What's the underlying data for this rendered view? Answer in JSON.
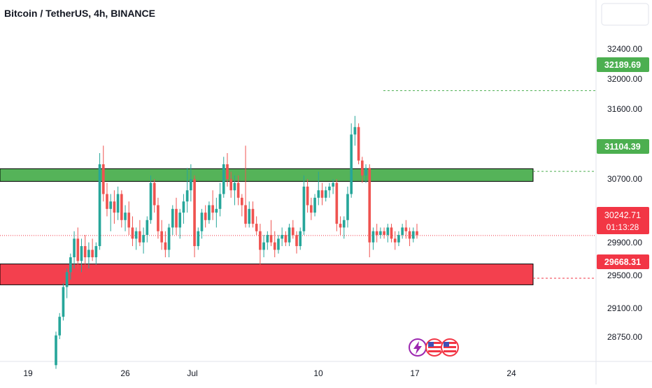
{
  "header": {
    "title": "Bitcoin / TetherUS, 4h, BINANCE"
  },
  "colors": {
    "up": "#26a69a",
    "down": "#ef5350",
    "zone_green": "#4caf50",
    "zone_red": "#f23645",
    "axis_text": "#131722"
  },
  "price_axis": {
    "ticks": [
      "32400.00",
      "32000.00",
      "31600.00",
      "30700.00",
      "29900.00",
      "29500.00",
      "29100.00",
      "28750.00"
    ]
  },
  "time_axis": {
    "ticks": [
      "19",
      "26",
      "Jul",
      "10",
      "17",
      "24"
    ]
  },
  "price_labels": {
    "target": "32189.69",
    "resistance": "31104.39",
    "current": "30242.71",
    "countdown": "01:13:28",
    "support": "29668.31"
  },
  "event_icons": [
    "lightning-icon",
    "us-flag-icon",
    "us-flag-icon"
  ],
  "chart_data": {
    "type": "candlestick",
    "title": "Bitcoin / TetherUS, 4h, BINANCE",
    "ylim": [
      28550,
      32750
    ],
    "zones": [
      {
        "name": "resistance",
        "low": 30970,
        "high": 31140,
        "color": "#4caf50"
      },
      {
        "name": "support",
        "low": 29580,
        "high": 29860,
        "color": "#f23645"
      }
    ],
    "levels": {
      "target": 32189.69,
      "resistance": 31104.39,
      "current": 30242.71,
      "support": 29668.31
    },
    "ohlc": [
      [
        28500,
        28950,
        28450,
        28900
      ],
      [
        28900,
        29200,
        28850,
        29150
      ],
      [
        29150,
        29600,
        29100,
        29550
      ],
      [
        29550,
        29800,
        29400,
        29750
      ],
      [
        29750,
        30000,
        29650,
        29950
      ],
      [
        29950,
        30300,
        29800,
        30200
      ],
      [
        30200,
        30350,
        29800,
        29900
      ],
      [
        29900,
        30200,
        29750,
        30100
      ],
      [
        30100,
        30250,
        29850,
        29950
      ],
      [
        29950,
        30150,
        29800,
        30050
      ],
      [
        30050,
        30200,
        29900,
        29950
      ],
      [
        29950,
        30150,
        29850,
        30100
      ],
      [
        30100,
        31350,
        30050,
        31200
      ],
      [
        31200,
        31450,
        30700,
        30800
      ],
      [
        30800,
        30950,
        30500,
        30600
      ],
      [
        30600,
        30800,
        30300,
        30700
      ],
      [
        30700,
        30850,
        30400,
        30550
      ],
      [
        30550,
        30900,
        30450,
        30800
      ],
      [
        30800,
        30850,
        30350,
        30450
      ],
      [
        30450,
        30650,
        30300,
        30550
      ],
      [
        30550,
        30700,
        30250,
        30350
      ],
      [
        30350,
        30500,
        30100,
        30200
      ],
      [
        30200,
        30350,
        30050,
        30300
      ],
      [
        30300,
        30450,
        30100,
        30150
      ],
      [
        30150,
        30350,
        30000,
        30250
      ],
      [
        30250,
        30500,
        30150,
        30450
      ],
      [
        30450,
        31050,
        30400,
        30950
      ],
      [
        30950,
        31000,
        30550,
        30650
      ],
      [
        30650,
        30750,
        30200,
        30300
      ],
      [
        30300,
        30450,
        30050,
        30150
      ],
      [
        30150,
        30300,
        29950,
        30050
      ],
      [
        30050,
        30400,
        29950,
        30350
      ],
      [
        30350,
        30650,
        30250,
        30600
      ],
      [
        30600,
        30750,
        30250,
        30350
      ],
      [
        30350,
        30600,
        30200,
        30550
      ],
      [
        30550,
        30800,
        30400,
        30700
      ],
      [
        30700,
        31150,
        30550,
        30850
      ],
      [
        30850,
        31200,
        30700,
        31000
      ],
      [
        31000,
        31050,
        29950,
        30100
      ],
      [
        30100,
        30350,
        30050,
        30300
      ],
      [
        30300,
        30600,
        30200,
        30550
      ],
      [
        30550,
        30650,
        30350,
        30450
      ],
      [
        30450,
        30700,
        30400,
        30650
      ],
      [
        30650,
        30850,
        30450,
        30550
      ],
      [
        30550,
        30750,
        30350,
        30600
      ],
      [
        30600,
        30950,
        30500,
        30800
      ],
      [
        30800,
        31300,
        30750,
        31200
      ],
      [
        31200,
        31350,
        30900,
        31000
      ],
      [
        31000,
        31100,
        30750,
        30850
      ],
      [
        30850,
        31050,
        30650,
        30950
      ],
      [
        30950,
        31050,
        30650,
        30750
      ],
      [
        30750,
        30800,
        30500,
        30650
      ],
      [
        30650,
        31450,
        30350,
        30400
      ],
      [
        30400,
        30700,
        30350,
        30600
      ],
      [
        30600,
        30700,
        30350,
        30400
      ],
      [
        30400,
        30500,
        30250,
        30300
      ],
      [
        30300,
        30400,
        29850,
        30050
      ],
      [
        30050,
        30250,
        29950,
        30150
      ],
      [
        30150,
        30300,
        30050,
        30250
      ],
      [
        30250,
        30450,
        30100,
        30150
      ],
      [
        30150,
        30300,
        29950,
        30050
      ],
      [
        30050,
        30250,
        30000,
        30200
      ],
      [
        30200,
        30350,
        30100,
        30250
      ],
      [
        30250,
        30300,
        30100,
        30150
      ],
      [
        30150,
        30400,
        30100,
        30350
      ],
      [
        30350,
        30450,
        30200,
        30250
      ],
      [
        30250,
        30300,
        30000,
        30100
      ],
      [
        30100,
        30350,
        30050,
        30300
      ],
      [
        30300,
        31050,
        30250,
        30900
      ],
      [
        30900,
        31000,
        30550,
        30650
      ],
      [
        30650,
        30750,
        30450,
        30550
      ],
      [
        30550,
        30800,
        30500,
        30750
      ],
      [
        30750,
        31100,
        30650,
        30850
      ],
      [
        30850,
        30950,
        30650,
        30750
      ],
      [
        30750,
        30900,
        30700,
        30850
      ],
      [
        30850,
        30950,
        30750,
        30900
      ],
      [
        30900,
        31000,
        30800,
        30950
      ],
      [
        30950,
        31000,
        30300,
        30400
      ],
      [
        30400,
        30500,
        30250,
        30350
      ],
      [
        30350,
        30500,
        30200,
        30450
      ],
      [
        30450,
        30900,
        30350,
        30800
      ],
      [
        30800,
        31750,
        30750,
        31600
      ],
      [
        31600,
        31850,
        31450,
        31700
      ],
      [
        31700,
        31750,
        31200,
        31250
      ],
      [
        31250,
        31300,
        30950,
        31050
      ],
      [
        31050,
        31200,
        30950,
        31150
      ],
      [
        31150,
        31200,
        29950,
        30150
      ],
      [
        30150,
        30350,
        30050,
        30300
      ],
      [
        30300,
        30400,
        30150,
        30250
      ],
      [
        30250,
        30350,
        30200,
        30300
      ],
      [
        30300,
        30350,
        30200,
        30250
      ],
      [
        30250,
        30400,
        30150,
        30350
      ],
      [
        30350,
        30400,
        30150,
        30200
      ],
      [
        30200,
        30300,
        30050,
        30150
      ],
      [
        30150,
        30300,
        30100,
        30250
      ],
      [
        30250,
        30400,
        30200,
        30350
      ],
      [
        30350,
        30450,
        30200,
        30300
      ],
      [
        30300,
        30350,
        30100,
        30200
      ],
      [
        30200,
        30350,
        30150,
        30300
      ],
      [
        30300,
        30400,
        30200,
        30250
      ]
    ]
  }
}
